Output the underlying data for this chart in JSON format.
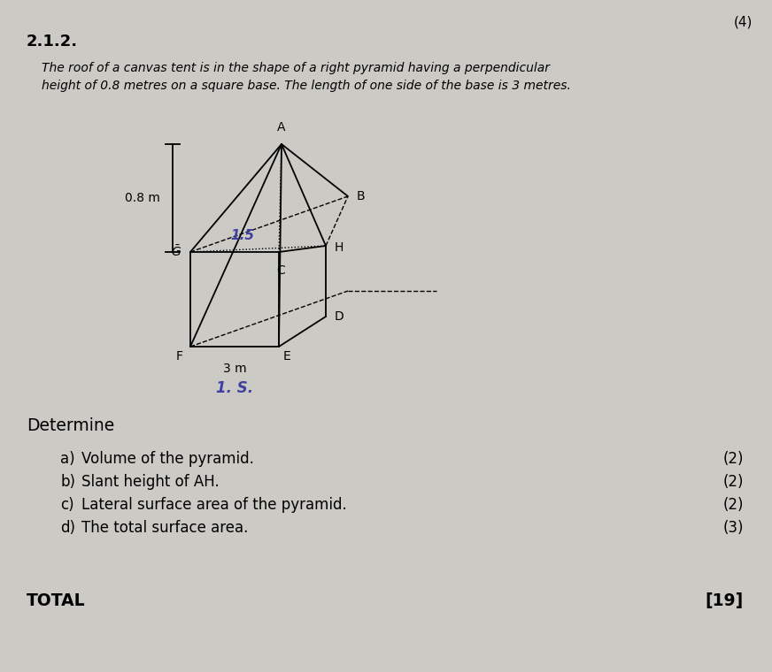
{
  "bg_color": "#cccac5",
  "section_number": "2.1.2.",
  "problem_text_line1": "The roof of a canvas tent is in the shape of a right pyramid having a perpendicular",
  "problem_text_line2": "height of 0.8 metres on a square base. The length of one side of the base is 3 metres.",
  "determine_label": "Determine",
  "questions": [
    {
      "letter": "a)",
      "text": "Volume of the pyramid.",
      "marks": "(2)"
    },
    {
      "letter": "b)",
      "text": "Slant height of AH.",
      "marks": "(2)"
    },
    {
      "letter": "c)",
      "text": "Lateral surface area of the pyramid.",
      "marks": "(2)"
    },
    {
      "letter": "d)",
      "text": "The total surface area.",
      "marks": "(3)"
    }
  ],
  "total_label": "TOTAL",
  "total_marks": "[19]",
  "top_right_marks": "(4)",
  "height_label": "0.8 m",
  "base_label": "3 m",
  "slant_label": "1.5",
  "below_label": "1. S."
}
